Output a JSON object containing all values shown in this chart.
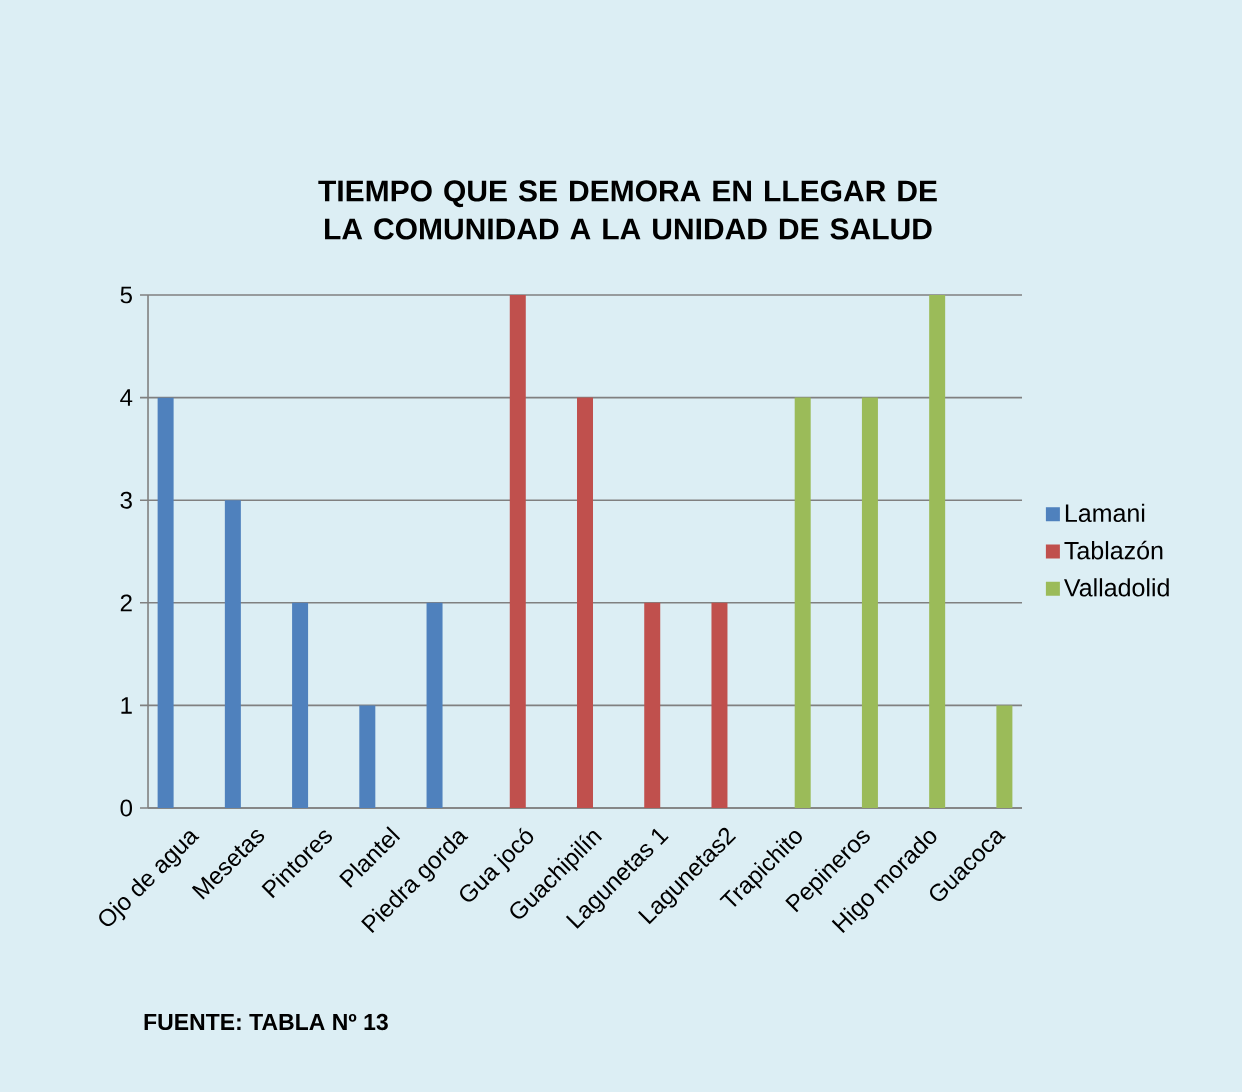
{
  "chart_data": {
    "type": "bar",
    "title": "TIEMPO QUE SE DEMORA EN LLEGAR DE LA COMUNIDAD A LA UNIDAD DE SALUD",
    "categories": [
      "Ojo de agua",
      "Mesetas",
      "Pintores",
      "Plantel",
      "Piedra gorda",
      "Gua jocó",
      "Guachipilín",
      "Lagunetas 1",
      "Lagunetas2",
      "Trapichito",
      "Pepineros",
      "Higo morado",
      "Guacoca"
    ],
    "series": [
      {
        "name": "Lamani",
        "color": "#4f81bd",
        "values": [
          4,
          3,
          2,
          1,
          2,
          null,
          null,
          null,
          null,
          null,
          null,
          null,
          null
        ]
      },
      {
        "name": "Tablazón",
        "color": "#c0504d",
        "values": [
          null,
          null,
          null,
          null,
          null,
          5,
          4,
          2,
          2,
          null,
          null,
          null,
          null
        ]
      },
      {
        "name": "Valladolid",
        "color": "#9bbb59",
        "values": [
          null,
          null,
          null,
          null,
          null,
          null,
          null,
          null,
          null,
          4,
          4,
          5,
          1
        ]
      }
    ],
    "ylim": [
      0,
      5
    ],
    "yticks": [
      0,
      1,
      2,
      3,
      4,
      5
    ],
    "grid": "y",
    "legend": "right",
    "annotations": [
      "FUENTE: TABLA Nº 13"
    ]
  }
}
